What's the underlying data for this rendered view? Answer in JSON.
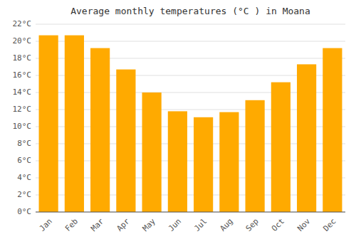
{
  "chart_data": {
    "type": "bar",
    "title": "Average monthly temperatures (°C ) in Moana",
    "categories": [
      "Jan",
      "Feb",
      "Mar",
      "Apr",
      "May",
      "Jun",
      "Jul",
      "Aug",
      "Sep",
      "Oct",
      "Nov",
      "Dec"
    ],
    "values": [
      20.7,
      20.7,
      19.2,
      16.7,
      14.0,
      11.8,
      11.1,
      11.7,
      13.1,
      15.2,
      17.3,
      19.2
    ],
    "color": "#FFAA00",
    "ylim": [
      0,
      22
    ],
    "yticks": [
      {
        "value": 0,
        "label": "0°C"
      },
      {
        "value": 2,
        "label": "2°C"
      },
      {
        "value": 4,
        "label": "4°C"
      },
      {
        "value": 6,
        "label": "6°C"
      },
      {
        "value": 8,
        "label": "8°C"
      },
      {
        "value": 10,
        "label": "10°C"
      },
      {
        "value": 12,
        "label": "12°C"
      },
      {
        "value": 14,
        "label": "14°C"
      },
      {
        "value": 16,
        "label": "16°C"
      },
      {
        "value": 18,
        "label": "18°C"
      },
      {
        "value": 20,
        "label": "20°C"
      },
      {
        "value": 22,
        "label": "22°C"
      }
    ],
    "grid": true
  }
}
